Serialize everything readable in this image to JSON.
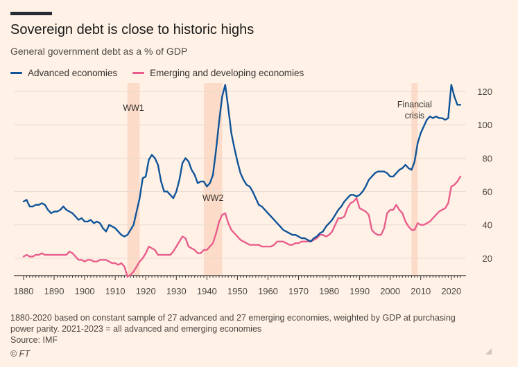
{
  "title": "Sovereign debt is close to historic highs",
  "subtitle": "General government debt as a % of GDP",
  "notes": [
    "1880-2020 based on constant sample of 27 advanced and 27 emerging economies, weighted by GDP at purchasing",
    "power parity. 2021-2023 = all advanced and emerging economies",
    "Source: IMF"
  ],
  "credit": "© FT",
  "colors": {
    "advanced": "#0F5499",
    "emerging": "#E95D8C",
    "shade": "#FCDCC8",
    "grid": "#E7D9CE",
    "axis": "#33302E"
  },
  "chart_data": {
    "type": "line",
    "title": "Sovereign debt is close to historic highs",
    "ylabel": "General government debt as a % of GDP",
    "xlim": [
      1880,
      2023
    ],
    "ylim": [
      10,
      125
    ],
    "x_ticks": [
      1880,
      1890,
      1900,
      1910,
      1920,
      1930,
      1940,
      1950,
      1960,
      1970,
      1980,
      1990,
      2000,
      2010,
      2020
    ],
    "y_ticks": [
      20,
      40,
      60,
      80,
      100,
      120
    ],
    "grid": true,
    "legend_position": "top-left",
    "shaded_periods": [
      {
        "label": "WW1",
        "start": 1914,
        "end": 1918
      },
      {
        "label": "WW2",
        "start": 1939,
        "end": 1945
      },
      {
        "label": "Financial crisis",
        "start": 2007,
        "end": 2009
      }
    ],
    "series": [
      {
        "name": "Advanced economies",
        "color": "#0F5499",
        "points": [
          [
            1880,
            54
          ],
          [
            1881,
            55
          ],
          [
            1882,
            51
          ],
          [
            1883,
            51
          ],
          [
            1884,
            52
          ],
          [
            1885,
            52
          ],
          [
            1886,
            53
          ],
          [
            1887,
            52
          ],
          [
            1888,
            49
          ],
          [
            1889,
            47
          ],
          [
            1890,
            48
          ],
          [
            1891,
            48
          ],
          [
            1892,
            49
          ],
          [
            1893,
            51
          ],
          [
            1894,
            49
          ],
          [
            1895,
            48
          ],
          [
            1896,
            47
          ],
          [
            1897,
            45
          ],
          [
            1898,
            43
          ],
          [
            1899,
            44
          ],
          [
            1900,
            42
          ],
          [
            1901,
            42
          ],
          [
            1902,
            43
          ],
          [
            1903,
            41
          ],
          [
            1904,
            42
          ],
          [
            1905,
            41
          ],
          [
            1906,
            38
          ],
          [
            1907,
            36
          ],
          [
            1908,
            40
          ],
          [
            1909,
            39
          ],
          [
            1910,
            38
          ],
          [
            1911,
            36
          ],
          [
            1912,
            34
          ],
          [
            1913,
            33
          ],
          [
            1914,
            34
          ],
          [
            1915,
            37
          ],
          [
            1916,
            40
          ],
          [
            1917,
            48
          ],
          [
            1918,
            56
          ],
          [
            1919,
            68
          ],
          [
            1920,
            69
          ],
          [
            1921,
            79
          ],
          [
            1922,
            82
          ],
          [
            1923,
            80
          ],
          [
            1924,
            76
          ],
          [
            1925,
            66
          ],
          [
            1926,
            60
          ],
          [
            1927,
            60
          ],
          [
            1928,
            58
          ],
          [
            1929,
            56
          ],
          [
            1930,
            60
          ],
          [
            1931,
            67
          ],
          [
            1932,
            77
          ],
          [
            1933,
            80
          ],
          [
            1934,
            78
          ],
          [
            1935,
            73
          ],
          [
            1936,
            70
          ],
          [
            1937,
            65
          ],
          [
            1938,
            66
          ],
          [
            1939,
            66
          ],
          [
            1940,
            63
          ],
          [
            1941,
            65
          ],
          [
            1942,
            70
          ],
          [
            1943,
            85
          ],
          [
            1944,
            102
          ],
          [
            1945,
            117
          ],
          [
            1946,
            124
          ],
          [
            1947,
            110
          ],
          [
            1948,
            95
          ],
          [
            1949,
            86
          ],
          [
            1950,
            78
          ],
          [
            1951,
            71
          ],
          [
            1952,
            67
          ],
          [
            1953,
            64
          ],
          [
            1954,
            63
          ],
          [
            1955,
            60
          ],
          [
            1956,
            56
          ],
          [
            1957,
            52
          ],
          [
            1958,
            51
          ],
          [
            1959,
            49
          ],
          [
            1960,
            47
          ],
          [
            1961,
            45
          ],
          [
            1962,
            43
          ],
          [
            1963,
            41
          ],
          [
            1964,
            39
          ],
          [
            1965,
            37
          ],
          [
            1966,
            36
          ],
          [
            1967,
            35
          ],
          [
            1968,
            34
          ],
          [
            1969,
            34
          ],
          [
            1970,
            33
          ],
          [
            1971,
            32
          ],
          [
            1972,
            32
          ],
          [
            1973,
            31
          ],
          [
            1974,
            30
          ],
          [
            1975,
            32
          ],
          [
            1976,
            33
          ],
          [
            1977,
            35
          ],
          [
            1978,
            36
          ],
          [
            1979,
            39
          ],
          [
            1980,
            41
          ],
          [
            1981,
            43
          ],
          [
            1982,
            46
          ],
          [
            1983,
            49
          ],
          [
            1984,
            51
          ],
          [
            1985,
            54
          ],
          [
            1986,
            56
          ],
          [
            1987,
            58
          ],
          [
            1988,
            58
          ],
          [
            1989,
            57
          ],
          [
            1990,
            58
          ],
          [
            1991,
            60
          ],
          [
            1992,
            63
          ],
          [
            1993,
            67
          ],
          [
            1994,
            69
          ],
          [
            1995,
            71
          ],
          [
            1996,
            72
          ],
          [
            1997,
            72
          ],
          [
            1998,
            72
          ],
          [
            1999,
            71
          ],
          [
            2000,
            69
          ],
          [
            2001,
            69
          ],
          [
            2002,
            71
          ],
          [
            2003,
            73
          ],
          [
            2004,
            74
          ],
          [
            2005,
            76
          ],
          [
            2006,
            74
          ],
          [
            2007,
            73
          ],
          [
            2008,
            78
          ],
          [
            2009,
            89
          ],
          [
            2010,
            95
          ],
          [
            2011,
            99
          ],
          [
            2012,
            103
          ],
          [
            2013,
            105
          ],
          [
            2014,
            104
          ],
          [
            2015,
            105
          ],
          [
            2016,
            104
          ],
          [
            2017,
            104
          ],
          [
            2018,
            103
          ],
          [
            2019,
            104
          ],
          [
            2020,
            124
          ],
          [
            2021,
            117
          ],
          [
            2022,
            112
          ],
          [
            2023,
            112
          ]
        ]
      },
      {
        "name": "Emerging and developing economies",
        "color": "#E95D8C",
        "points": [
          [
            1880,
            21
          ],
          [
            1881,
            22
          ],
          [
            1882,
            21
          ],
          [
            1883,
            21
          ],
          [
            1884,
            22
          ],
          [
            1885,
            22
          ],
          [
            1886,
            23
          ],
          [
            1887,
            22
          ],
          [
            1888,
            22
          ],
          [
            1889,
            22
          ],
          [
            1890,
            22
          ],
          [
            1891,
            22
          ],
          [
            1892,
            22
          ],
          [
            1893,
            22
          ],
          [
            1894,
            22
          ],
          [
            1895,
            24
          ],
          [
            1896,
            23
          ],
          [
            1897,
            21
          ],
          [
            1898,
            19
          ],
          [
            1899,
            19
          ],
          [
            1900,
            18
          ],
          [
            1901,
            19
          ],
          [
            1902,
            19
          ],
          [
            1903,
            18
          ],
          [
            1904,
            18
          ],
          [
            1905,
            19
          ],
          [
            1906,
            19
          ],
          [
            1907,
            19
          ],
          [
            1908,
            18
          ],
          [
            1909,
            17
          ],
          [
            1910,
            17
          ],
          [
            1911,
            16
          ],
          [
            1912,
            17
          ],
          [
            1913,
            15
          ],
          [
            1914,
            9
          ],
          [
            1915,
            10
          ],
          [
            1916,
            12
          ],
          [
            1917,
            15
          ],
          [
            1918,
            18
          ],
          [
            1919,
            20
          ],
          [
            1920,
            23
          ],
          [
            1921,
            27
          ],
          [
            1922,
            26
          ],
          [
            1923,
            25
          ],
          [
            1924,
            22
          ],
          [
            1925,
            22
          ],
          [
            1926,
            22
          ],
          [
            1927,
            22
          ],
          [
            1928,
            22
          ],
          [
            1929,
            24
          ],
          [
            1930,
            27
          ],
          [
            1931,
            30
          ],
          [
            1932,
            33
          ],
          [
            1933,
            32
          ],
          [
            1934,
            27
          ],
          [
            1935,
            26
          ],
          [
            1936,
            25
          ],
          [
            1937,
            23
          ],
          [
            1938,
            23
          ],
          [
            1939,
            25
          ],
          [
            1940,
            25
          ],
          [
            1941,
            27
          ],
          [
            1942,
            29
          ],
          [
            1943,
            35
          ],
          [
            1944,
            42
          ],
          [
            1945,
            46
          ],
          [
            1946,
            47
          ],
          [
            1947,
            41
          ],
          [
            1948,
            37
          ],
          [
            1949,
            35
          ],
          [
            1950,
            33
          ],
          [
            1951,
            31
          ],
          [
            1952,
            30
          ],
          [
            1953,
            29
          ],
          [
            1954,
            28
          ],
          [
            1955,
            28
          ],
          [
            1956,
            28
          ],
          [
            1957,
            28
          ],
          [
            1958,
            27
          ],
          [
            1959,
            27
          ],
          [
            1960,
            27
          ],
          [
            1961,
            27
          ],
          [
            1962,
            28
          ],
          [
            1963,
            30
          ],
          [
            1964,
            30
          ],
          [
            1965,
            30
          ],
          [
            1966,
            29
          ],
          [
            1967,
            28
          ],
          [
            1968,
            28
          ],
          [
            1969,
            29
          ],
          [
            1970,
            29
          ],
          [
            1971,
            30
          ],
          [
            1972,
            30
          ],
          [
            1973,
            30
          ],
          [
            1974,
            30
          ],
          [
            1975,
            31
          ],
          [
            1976,
            32
          ],
          [
            1977,
            34
          ],
          [
            1978,
            34
          ],
          [
            1979,
            33
          ],
          [
            1980,
            34
          ],
          [
            1981,
            36
          ],
          [
            1982,
            40
          ],
          [
            1983,
            44
          ],
          [
            1984,
            44
          ],
          [
            1985,
            45
          ],
          [
            1986,
            50
          ],
          [
            1987,
            53
          ],
          [
            1988,
            54
          ],
          [
            1989,
            56
          ],
          [
            1990,
            50
          ],
          [
            1991,
            49
          ],
          [
            1992,
            48
          ],
          [
            1993,
            46
          ],
          [
            1994,
            37
          ],
          [
            1995,
            35
          ],
          [
            1996,
            34
          ],
          [
            1997,
            34
          ],
          [
            1998,
            38
          ],
          [
            1999,
            47
          ],
          [
            2000,
            49
          ],
          [
            2001,
            49
          ],
          [
            2002,
            52
          ],
          [
            2003,
            49
          ],
          [
            2004,
            47
          ],
          [
            2005,
            42
          ],
          [
            2006,
            39
          ],
          [
            2007,
            37
          ],
          [
            2008,
            37
          ],
          [
            2009,
            41
          ],
          [
            2010,
            40
          ],
          [
            2011,
            40
          ],
          [
            2012,
            41
          ],
          [
            2013,
            42
          ],
          [
            2014,
            44
          ],
          [
            2015,
            46
          ],
          [
            2016,
            48
          ],
          [
            2017,
            49
          ],
          [
            2018,
            50
          ],
          [
            2019,
            53
          ],
          [
            2020,
            63
          ],
          [
            2021,
            64
          ],
          [
            2022,
            66
          ],
          [
            2023,
            69
          ]
        ]
      }
    ]
  }
}
